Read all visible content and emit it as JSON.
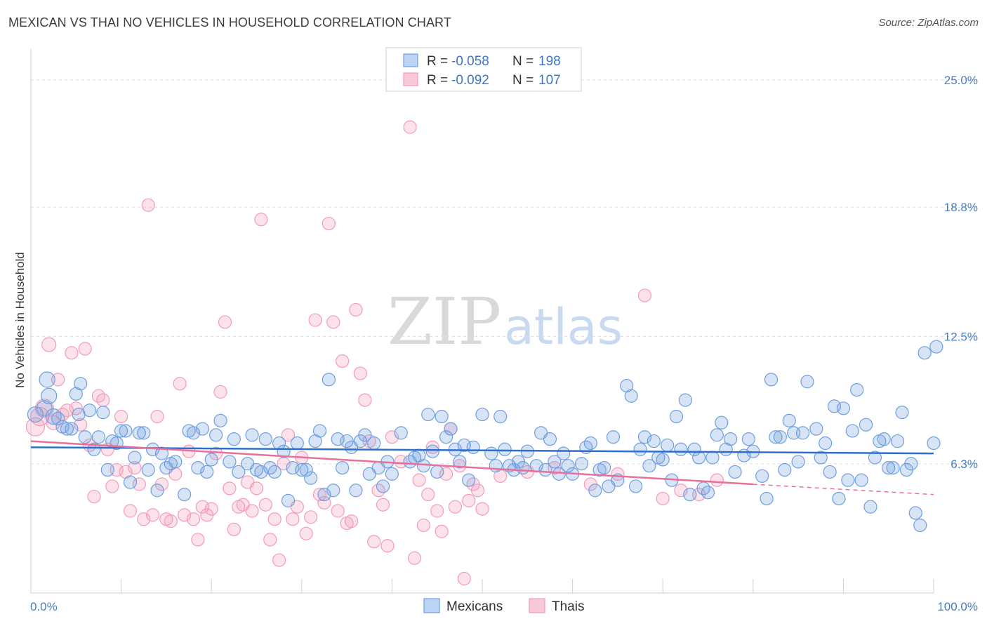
{
  "title": "MEXICAN VS THAI NO VEHICLES IN HOUSEHOLD CORRELATION CHART",
  "source": "Source: ZipAtlas.com",
  "watermark": {
    "zip": "ZIP",
    "atlas": "atlas"
  },
  "colors": {
    "blue": "#6f9fe0",
    "blue_line": "#2f6fcc",
    "pink": "#f49bb8",
    "pink_line": "#e8709a",
    "tick_text": "#4a7cc4"
  },
  "legend": {
    "rows": [
      {
        "r_label": "R = ",
        "r_value": "-0.058",
        "n_label": "N = ",
        "n_value": "198"
      },
      {
        "r_label": "R = ",
        "r_value": "-0.092",
        "n_label": "N = ",
        "n_value": "107"
      }
    ]
  },
  "chart_data": {
    "type": "scatter",
    "ylabel": "No Vehicles in Household",
    "xlabel": "",
    "xlim": [
      0,
      100
    ],
    "ylim": [
      0,
      26.5
    ],
    "x_tick_labels": [
      "0.0%",
      "100.0%"
    ],
    "y_ticks": [
      6.3,
      12.5,
      18.8,
      25.0
    ],
    "y_tick_labels": [
      "6.3%",
      "12.5%",
      "18.8%",
      "25.0%"
    ],
    "legend_position": "top-center",
    "series": [
      {
        "name": "Mexicans",
        "color": "#6f9fe0",
        "trend": {
          "x0": 0,
          "y0": 7.1,
          "x1": 100,
          "y1": 6.8
        },
        "points": [
          [
            0.5,
            8.7
          ],
          [
            1.5,
            9.0
          ],
          [
            1.8,
            10.4
          ],
          [
            2.0,
            9.6
          ],
          [
            2.5,
            8.6
          ],
          [
            3.0,
            8.5
          ],
          [
            3.5,
            8.1
          ],
          [
            4.0,
            8.0
          ],
          [
            4.5,
            8.0
          ],
          [
            5.0,
            9.7
          ],
          [
            5.3,
            8.7
          ],
          [
            5.5,
            10.2
          ],
          [
            6.0,
            7.6
          ],
          [
            6.5,
            8.9
          ],
          [
            7.0,
            7.0
          ],
          [
            7.5,
            7.6
          ],
          [
            8.0,
            8.8
          ],
          [
            8.5,
            6.0
          ],
          [
            9.0,
            7.4
          ],
          [
            9.5,
            7.3
          ],
          [
            10.0,
            7.9
          ],
          [
            10.5,
            7.9
          ],
          [
            11.0,
            5.4
          ],
          [
            11.5,
            6.6
          ],
          [
            12.0,
            7.8
          ],
          [
            12.5,
            7.8
          ],
          [
            13.0,
            6.0
          ],
          [
            13.5,
            7.0
          ],
          [
            14.0,
            5.0
          ],
          [
            14.5,
            6.8
          ],
          [
            15.0,
            6.1
          ],
          [
            15.5,
            6.3
          ],
          [
            16.0,
            6.4
          ],
          [
            17.0,
            4.8
          ],
          [
            17.5,
            7.9
          ],
          [
            18.0,
            7.8
          ],
          [
            18.5,
            6.1
          ],
          [
            19.0,
            8.0
          ],
          [
            19.5,
            5.9
          ],
          [
            20.0,
            6.5
          ],
          [
            20.5,
            7.7
          ],
          [
            21.0,
            8.4
          ],
          [
            22.0,
            6.4
          ],
          [
            22.5,
            7.5
          ],
          [
            23.0,
            5.9
          ],
          [
            24.0,
            6.3
          ],
          [
            24.5,
            7.7
          ],
          [
            25.0,
            6.0
          ],
          [
            25.5,
            5.9
          ],
          [
            26.0,
            7.5
          ],
          [
            26.5,
            6.1
          ],
          [
            27.0,
            5.9
          ],
          [
            27.5,
            7.3
          ],
          [
            28.0,
            6.9
          ],
          [
            28.5,
            4.5
          ],
          [
            29.0,
            6.1
          ],
          [
            29.5,
            7.3
          ],
          [
            30.0,
            6.0
          ],
          [
            30.5,
            6.0
          ],
          [
            31.0,
            5.6
          ],
          [
            31.5,
            7.4
          ],
          [
            32.0,
            7.9
          ],
          [
            32.5,
            4.8
          ],
          [
            33.0,
            10.4
          ],
          [
            33.5,
            5.0
          ],
          [
            34.0,
            7.5
          ],
          [
            34.5,
            6.1
          ],
          [
            35.0,
            7.4
          ],
          [
            35.5,
            7.1
          ],
          [
            36.0,
            5.0
          ],
          [
            36.5,
            7.4
          ],
          [
            37.0,
            7.7
          ],
          [
            37.5,
            5.8
          ],
          [
            38.0,
            7.3
          ],
          [
            38.5,
            6.1
          ],
          [
            39.0,
            5.2
          ],
          [
            39.5,
            6.4
          ],
          [
            40.0,
            5.8
          ],
          [
            41.0,
            7.8
          ],
          [
            42.0,
            6.4
          ],
          [
            42.5,
            6.6
          ],
          [
            43.0,
            6.7
          ],
          [
            43.5,
            6.2
          ],
          [
            44.0,
            8.7
          ],
          [
            44.5,
            6.9
          ],
          [
            45.0,
            5.9
          ],
          [
            45.5,
            8.6
          ],
          [
            46.0,
            7.6
          ],
          [
            46.5,
            8.0
          ],
          [
            47.0,
            7.0
          ],
          [
            47.5,
            6.4
          ],
          [
            48.0,
            7.2
          ],
          [
            48.5,
            5.5
          ],
          [
            49.0,
            7.1
          ],
          [
            50.0,
            8.7
          ],
          [
            51.0,
            6.8
          ],
          [
            51.5,
            6.2
          ],
          [
            52.0,
            8.6
          ],
          [
            52.5,
            7.0
          ],
          [
            53.0,
            6.2
          ],
          [
            53.5,
            6.0
          ],
          [
            54.0,
            6.4
          ],
          [
            54.5,
            6.1
          ],
          [
            55.0,
            6.9
          ],
          [
            56.0,
            6.2
          ],
          [
            56.5,
            7.8
          ],
          [
            57.0,
            6.0
          ],
          [
            57.5,
            7.5
          ],
          [
            58.0,
            6.4
          ],
          [
            58.5,
            5.8
          ],
          [
            59.0,
            6.8
          ],
          [
            59.5,
            6.2
          ],
          [
            60.0,
            5.8
          ],
          [
            61.0,
            6.3
          ],
          [
            61.5,
            7.1
          ],
          [
            62.0,
            7.3
          ],
          [
            62.5,
            5.0
          ],
          [
            63.0,
            6.0
          ],
          [
            63.5,
            6.1
          ],
          [
            64.0,
            5.2
          ],
          [
            64.5,
            7.6
          ],
          [
            65.0,
            5.5
          ],
          [
            66.0,
            10.1
          ],
          [
            66.5,
            9.6
          ],
          [
            67.0,
            5.2
          ],
          [
            67.5,
            7.0
          ],
          [
            68.0,
            7.6
          ],
          [
            68.5,
            6.2
          ],
          [
            69.0,
            7.4
          ],
          [
            69.5,
            6.6
          ],
          [
            70.0,
            6.5
          ],
          [
            70.5,
            7.2
          ],
          [
            71.0,
            5.5
          ],
          [
            71.5,
            8.6
          ],
          [
            72.0,
            7.0
          ],
          [
            72.5,
            9.4
          ],
          [
            73.0,
            4.8
          ],
          [
            73.5,
            7.0
          ],
          [
            74.0,
            6.6
          ],
          [
            74.5,
            5.1
          ],
          [
            75.0,
            4.9
          ],
          [
            75.5,
            6.6
          ],
          [
            76.0,
            7.7
          ],
          [
            76.5,
            8.3
          ],
          [
            77.0,
            7.0
          ],
          [
            77.5,
            7.5
          ],
          [
            78.0,
            5.9
          ],
          [
            79.0,
            6.7
          ],
          [
            79.5,
            7.5
          ],
          [
            80.0,
            6.9
          ],
          [
            81.0,
            5.7
          ],
          [
            81.5,
            4.6
          ],
          [
            82.0,
            10.4
          ],
          [
            82.5,
            7.6
          ],
          [
            83.0,
            7.6
          ],
          [
            83.5,
            6.0
          ],
          [
            84.0,
            8.4
          ],
          [
            84.5,
            7.8
          ],
          [
            85.0,
            6.4
          ],
          [
            85.5,
            7.8
          ],
          [
            86.0,
            10.3
          ],
          [
            87.0,
            8.0
          ],
          [
            87.5,
            6.6
          ],
          [
            88.0,
            7.3
          ],
          [
            88.5,
            5.9
          ],
          [
            89.0,
            9.1
          ],
          [
            89.5,
            4.6
          ],
          [
            90.0,
            9.0
          ],
          [
            90.5,
            5.5
          ],
          [
            91.0,
            7.9
          ],
          [
            91.5,
            9.9
          ],
          [
            92.0,
            5.5
          ],
          [
            92.5,
            8.2
          ],
          [
            93.0,
            4.2
          ],
          [
            93.5,
            6.6
          ],
          [
            94.0,
            7.4
          ],
          [
            94.5,
            7.5
          ],
          [
            95.0,
            6.1
          ],
          [
            95.5,
            6.1
          ],
          [
            96.0,
            7.4
          ],
          [
            96.5,
            8.8
          ],
          [
            97.0,
            6.0
          ],
          [
            97.5,
            6.3
          ],
          [
            98.0,
            3.9
          ],
          [
            98.5,
            3.3
          ],
          [
            99.0,
            11.7
          ],
          [
            100.0,
            7.3
          ],
          [
            100.5,
            12.0
          ]
        ]
      },
      {
        "name": "Thais",
        "color": "#f49bb8",
        "trend": {
          "x0": 0,
          "y0": 7.4,
          "x1": 80,
          "y1": 5.3
        },
        "trend_dashed": {
          "x0": 80,
          "y0": 5.3,
          "x1": 100,
          "y1": 4.8
        },
        "points": [
          [
            0.5,
            8.1
          ],
          [
            1.0,
            8.6
          ],
          [
            1.5,
            9.0
          ],
          [
            2.0,
            12.1
          ],
          [
            2.5,
            8.3
          ],
          [
            3.0,
            10.4
          ],
          [
            3.5,
            8.7
          ],
          [
            4.0,
            8.9
          ],
          [
            4.5,
            11.7
          ],
          [
            5.0,
            9.0
          ],
          [
            5.5,
            8.2
          ],
          [
            6.0,
            11.9
          ],
          [
            6.5,
            7.2
          ],
          [
            7.0,
            4.7
          ],
          [
            7.5,
            9.6
          ],
          [
            8.0,
            9.4
          ],
          [
            8.5,
            7.0
          ],
          [
            9.0,
            5.2
          ],
          [
            9.5,
            6.0
          ],
          [
            10.0,
            8.6
          ],
          [
            10.5,
            5.9
          ],
          [
            11.0,
            4.0
          ],
          [
            11.5,
            6.1
          ],
          [
            12.0,
            5.3
          ],
          [
            12.5,
            3.6
          ],
          [
            13.0,
            18.9
          ],
          [
            13.5,
            3.8
          ],
          [
            14.0,
            8.6
          ],
          [
            14.5,
            5.3
          ],
          [
            15.0,
            3.6
          ],
          [
            15.5,
            3.5
          ],
          [
            16.0,
            5.8
          ],
          [
            16.5,
            10.2
          ],
          [
            17.0,
            3.8
          ],
          [
            17.5,
            6.9
          ],
          [
            18.0,
            3.6
          ],
          [
            18.5,
            2.6
          ],
          [
            19.0,
            4.2
          ],
          [
            19.5,
            3.8
          ],
          [
            20.0,
            4.1
          ],
          [
            20.5,
            6.8
          ],
          [
            21.0,
            9.8
          ],
          [
            21.5,
            13.2
          ],
          [
            22.0,
            5.1
          ],
          [
            22.5,
            3.1
          ],
          [
            23.0,
            4.2
          ],
          [
            23.5,
            4.3
          ],
          [
            24.0,
            5.4
          ],
          [
            24.5,
            4.0
          ],
          [
            25.0,
            5.1
          ],
          [
            25.5,
            18.2
          ],
          [
            26.0,
            4.3
          ],
          [
            26.5,
            2.6
          ],
          [
            27.0,
            3.6
          ],
          [
            27.5,
            1.6
          ],
          [
            28.0,
            6.3
          ],
          [
            28.5,
            7.7
          ],
          [
            29.0,
            3.6
          ],
          [
            29.5,
            4.2
          ],
          [
            30.0,
            6.6
          ],
          [
            30.5,
            2.9
          ],
          [
            31.0,
            3.7
          ],
          [
            31.5,
            13.3
          ],
          [
            32.0,
            4.8
          ],
          [
            32.5,
            4.4
          ],
          [
            33.0,
            18.0
          ],
          [
            33.5,
            13.2
          ],
          [
            34.0,
            4.0
          ],
          [
            34.5,
            11.3
          ],
          [
            35.0,
            3.4
          ],
          [
            35.5,
            3.5
          ],
          [
            36.0,
            13.8
          ],
          [
            36.5,
            10.7
          ],
          [
            37.0,
            9.4
          ],
          [
            37.5,
            7.4
          ],
          [
            38.0,
            2.5
          ],
          [
            38.5,
            5.0
          ],
          [
            39.0,
            4.3
          ],
          [
            39.5,
            2.3
          ],
          [
            40.0,
            7.6
          ],
          [
            41.0,
            6.4
          ],
          [
            42.0,
            22.7
          ],
          [
            42.5,
            1.7
          ],
          [
            43.0,
            5.5
          ],
          [
            43.5,
            3.3
          ],
          [
            44.0,
            4.8
          ],
          [
            44.5,
            7.1
          ],
          [
            45.0,
            4.0
          ],
          [
            45.5,
            3.0
          ],
          [
            46.0,
            5.8
          ],
          [
            46.5,
            8.0
          ],
          [
            47.0,
            4.2
          ],
          [
            47.5,
            6.2
          ],
          [
            48.0,
            0.7
          ],
          [
            48.5,
            4.5
          ],
          [
            49.0,
            5.3
          ],
          [
            49.5,
            5.0
          ],
          [
            50.0,
            4.1
          ],
          [
            52.0,
            5.7
          ],
          [
            55.0,
            5.9
          ],
          [
            58.0,
            6.1
          ],
          [
            62.0,
            5.3
          ],
          [
            65.0,
            5.8
          ],
          [
            68.0,
            14.5
          ],
          [
            70.0,
            4.6
          ],
          [
            72.0,
            5.0
          ],
          [
            74.0,
            4.8
          ],
          [
            76.0,
            5.5
          ]
        ]
      }
    ]
  },
  "bottom_legend": [
    "Mexicans",
    "Thais"
  ]
}
